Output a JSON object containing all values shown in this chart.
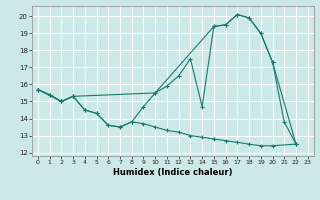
{
  "xlabel": "Humidex (Indice chaleur)",
  "background_color": "#cce8e8",
  "grid_color": "#ffffff",
  "line_color": "#1a7a6a",
  "xlim": [
    -0.5,
    23.5
  ],
  "ylim": [
    11.8,
    20.6
  ],
  "yticks": [
    12,
    13,
    14,
    15,
    16,
    17,
    18,
    19,
    20
  ],
  "xticks": [
    0,
    1,
    2,
    3,
    4,
    5,
    6,
    7,
    8,
    9,
    10,
    11,
    12,
    13,
    14,
    15,
    16,
    17,
    18,
    19,
    20,
    21,
    22,
    23
  ],
  "line1_x": [
    0,
    1,
    2,
    3,
    4,
    5,
    6,
    7,
    8,
    9,
    10,
    11,
    12,
    13,
    14,
    15,
    16,
    17,
    18,
    19,
    20,
    21,
    22
  ],
  "line1_y": [
    15.7,
    15.4,
    15.0,
    15.3,
    14.5,
    14.3,
    13.6,
    13.5,
    13.8,
    14.7,
    15.5,
    15.9,
    16.5,
    17.5,
    14.7,
    19.4,
    19.5,
    20.1,
    19.9,
    19.0,
    17.3,
    13.8,
    12.5
  ],
  "line2_x": [
    0,
    2,
    3,
    10,
    15,
    16,
    17,
    18,
    19,
    20,
    22
  ],
  "line2_y": [
    15.7,
    15.0,
    15.3,
    15.5,
    19.4,
    19.5,
    20.1,
    19.9,
    19.0,
    17.3,
    12.5
  ],
  "line3_x": [
    0,
    1,
    2,
    3,
    4,
    5,
    6,
    7,
    8,
    9,
    10,
    11,
    12,
    13,
    14,
    15,
    16,
    17,
    18,
    19,
    20,
    22
  ],
  "line3_y": [
    15.7,
    15.4,
    15.0,
    15.3,
    14.5,
    14.3,
    13.6,
    13.5,
    13.8,
    13.7,
    13.5,
    13.3,
    13.2,
    13.0,
    12.9,
    12.8,
    12.7,
    12.6,
    12.5,
    12.4,
    12.4,
    12.5
  ]
}
